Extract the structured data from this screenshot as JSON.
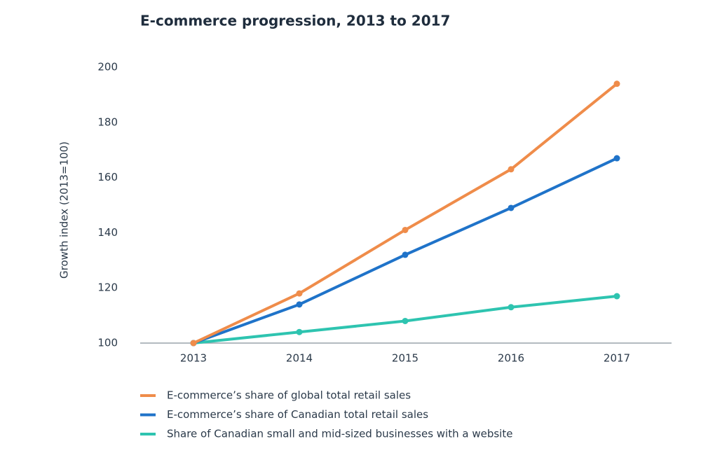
{
  "chart_data": {
    "type": "line",
    "title": "E-commerce progression, 2013 to 2017",
    "y_label": "Growth index (2013=100)",
    "categories": [
      "2013",
      "2014",
      "2015",
      "2016",
      "2017"
    ],
    "series": [
      {
        "name": "E-commerce’s share of global total retail sales",
        "color": "#ef8c4a",
        "values": [
          100,
          118,
          141,
          163,
          194
        ]
      },
      {
        "name": "E-commerce’s share of Canadian total retail sales",
        "color": "#1f73c9",
        "values": [
          100,
          114,
          132,
          149,
          167
        ]
      },
      {
        "name": "Share of Canadian small and mid-sized businesses with a website",
        "color": "#2ec4b0",
        "values": [
          100,
          104,
          108,
          113,
          117
        ]
      }
    ],
    "ylim": [
      100,
      200
    ],
    "yticks": [
      100,
      120,
      140,
      160,
      180,
      200
    ],
    "grid": false
  }
}
